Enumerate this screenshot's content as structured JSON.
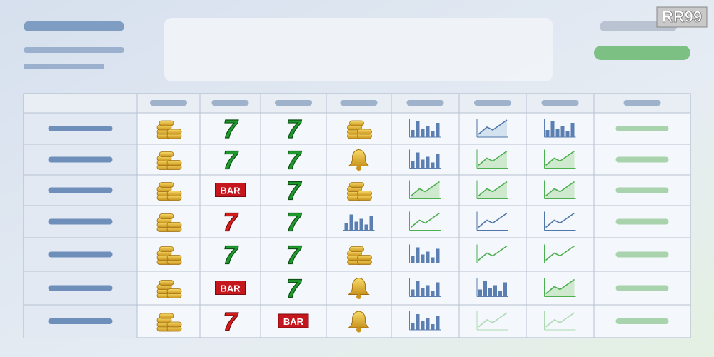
{
  "logo": "RR99",
  "table": {
    "rows": [
      [
        "7",
        "7"
      ],
      [
        "7",
        "7"
      ],
      [
        "BAR",
        "7"
      ],
      [
        "7",
        "7"
      ],
      [
        "7",
        "7"
      ],
      [
        "BAR",
        "7"
      ],
      [
        "7",
        "BAR"
      ]
    ]
  }
}
